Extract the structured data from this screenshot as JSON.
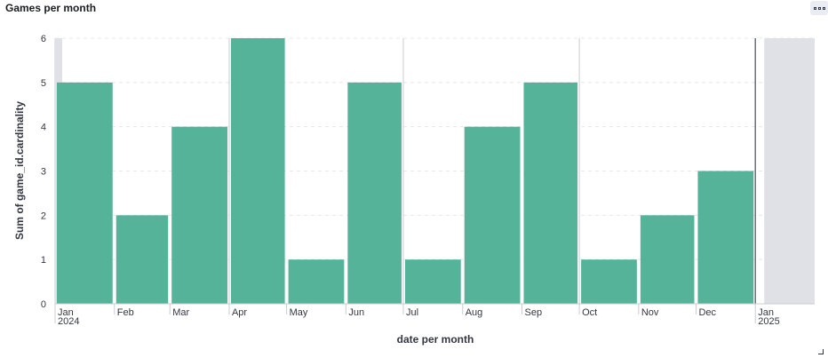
{
  "panel": {
    "title": "Games per month"
  },
  "chart_data": {
    "type": "bar",
    "title": "Games per month",
    "xlabel": "date per month",
    "ylabel": "Sum of game_id.cardinality",
    "categories": [
      "Jan 2024",
      "Feb",
      "Mar",
      "Apr",
      "May",
      "Jun",
      "Jul",
      "Aug",
      "Sep",
      "Oct",
      "Nov",
      "Dec"
    ],
    "x_ticks": [
      {
        "label": "Jan",
        "sub": "2024"
      },
      {
        "label": "Feb",
        "sub": ""
      },
      {
        "label": "Mar",
        "sub": ""
      },
      {
        "label": "Apr",
        "sub": ""
      },
      {
        "label": "May",
        "sub": ""
      },
      {
        "label": "Jun",
        "sub": ""
      },
      {
        "label": "Jul",
        "sub": ""
      },
      {
        "label": "Aug",
        "sub": ""
      },
      {
        "label": "Sep",
        "sub": ""
      },
      {
        "label": "Oct",
        "sub": ""
      },
      {
        "label": "Nov",
        "sub": ""
      },
      {
        "label": "Dec",
        "sub": ""
      },
      {
        "label": "Jan",
        "sub": "2025"
      }
    ],
    "values": [
      5,
      2,
      4,
      6,
      1,
      5,
      1,
      4,
      5,
      1,
      2,
      3
    ],
    "ylim": [
      0,
      6
    ],
    "yticks": [
      0,
      1,
      2,
      3,
      4,
      5,
      6
    ],
    "grid": true,
    "bar_color": "#54b399"
  }
}
